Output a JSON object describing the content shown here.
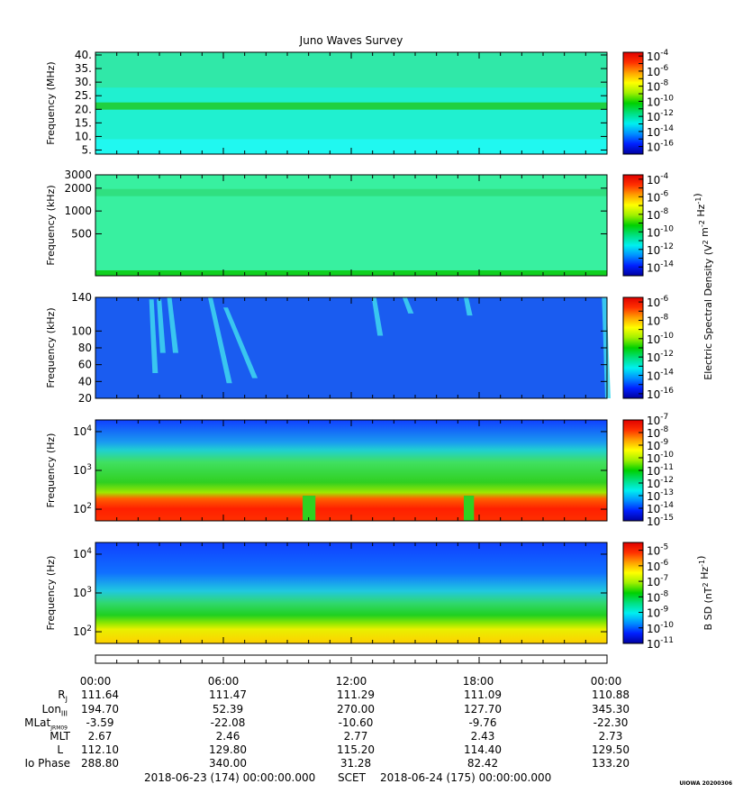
{
  "title": "Juno Waves Survey",
  "colors": {
    "colormap": [
      "#0000a0",
      "#0020ff",
      "#0090ff",
      "#00f0f0",
      "#00e080",
      "#00d000",
      "#a0f000",
      "#ffff00",
      "#ffa000",
      "#ff3000",
      "#e00000"
    ]
  },
  "chart_data": [
    {
      "type": "heatmap",
      "ylabel": "Frequency (MHz)",
      "y_ticks": [
        "5.",
        "10.",
        "15.",
        "20.",
        "25.",
        "30.",
        "35.",
        "40."
      ],
      "ylim": [
        3.5,
        41
      ],
      "yscale": "linear",
      "colorbar_ticks": [
        "-4",
        "-6",
        "-8",
        "-10",
        "-12",
        "-14",
        "-16"
      ],
      "colorbar_range": [
        -17,
        -3.5
      ],
      "feature": "uniform cyan background with a bright green band near 21 MHz"
    },
    {
      "type": "heatmap",
      "ylabel": "Frequency (kHz)",
      "y_ticks": [
        "500",
        "1000",
        "2000",
        "3000"
      ],
      "ylim": [
        140,
        3000
      ],
      "yscale": "log",
      "colorbar_ticks": [
        "-4",
        "-6",
        "-8",
        "-10",
        "-12",
        "-14"
      ],
      "colorbar_range": [
        -15,
        -3.5
      ],
      "feature": "uniform light green, darker green band near 1800 kHz and at lowest frequencies"
    },
    {
      "type": "heatmap",
      "ylabel": "Frequency (kHz)",
      "y_ticks": [
        "20",
        "40",
        "60",
        "80",
        "100",
        "140"
      ],
      "ylim": [
        20,
        140
      ],
      "yscale": "linear",
      "colorbar_ticks": [
        "-6",
        "-8",
        "-10",
        "-12",
        "-14",
        "-16"
      ],
      "colorbar_range": [
        -16.5,
        -5.5
      ],
      "feature": "blue background with cyan drifting emissions around 02:30, 05:30 and 13:00-16:00"
    },
    {
      "type": "heatmap",
      "ylabel": "Frequency (Hz)",
      "y_ticks": [
        "10^2",
        "10^3",
        "10^4"
      ],
      "ylim": [
        50,
        20000
      ],
      "yscale": "log",
      "colorbar_ticks": [
        "-7",
        "-8",
        "-9",
        "-10",
        "-11",
        "-12",
        "-13",
        "-14",
        "-15"
      ],
      "colorbar_range": [
        -15,
        -7
      ],
      "feature": "red/yellow below ~300 Hz, green to ~2 kHz, blue above"
    },
    {
      "type": "heatmap",
      "ylabel": "Frequency (Hz)",
      "y_ticks": [
        "10^2",
        "10^3",
        "10^4"
      ],
      "ylim": [
        50,
        20000
      ],
      "yscale": "log",
      "colorbar_ticks": [
        "-5",
        "-6",
        "-7",
        "-8",
        "-9",
        "-10",
        "-11"
      ],
      "colorbar_range": [
        -11,
        -4.5
      ],
      "feature": "yellow below ~150 Hz, green to ~800 Hz, cyan/blue above"
    }
  ],
  "colorbar_titles": {
    "electric": "Electric Spectral Density (V^2 m^-2 Hz^-1)",
    "magnetic": "B SD (nT^2 Hz^-1)"
  },
  "x_axis": {
    "tick_labels": [
      "00:00",
      "06:00",
      "12:00",
      "18:00",
      "00:00"
    ],
    "hours_span": 24
  },
  "ephemeris": {
    "labels": [
      "RJ",
      "LonIII",
      "MLatJRM09",
      "MLT",
      "L",
      "Io Phase"
    ],
    "rows": [
      [
        "111.64",
        "111.47",
        "111.29",
        "111.09",
        "110.88"
      ],
      [
        "194.70",
        "52.39",
        "270.00",
        "127.70",
        "345.30"
      ],
      [
        "-3.59",
        "-22.08",
        "-10.60",
        "-9.76",
        "-22.30"
      ],
      [
        "2.67",
        "2.46",
        "2.77",
        "2.43",
        "2.73"
      ],
      [
        "112.10",
        "129.80",
        "115.20",
        "114.40",
        "129.50"
      ],
      [
        "288.80",
        "340.00",
        "31.28",
        "82.42",
        "133.20"
      ]
    ]
  },
  "footer": {
    "start": "2018-06-23 (174) 00:00:00.000",
    "scet": "SCET",
    "end": "2018-06-24 (175) 00:00:00.000"
  },
  "stamp": "UIOWA 20200306"
}
